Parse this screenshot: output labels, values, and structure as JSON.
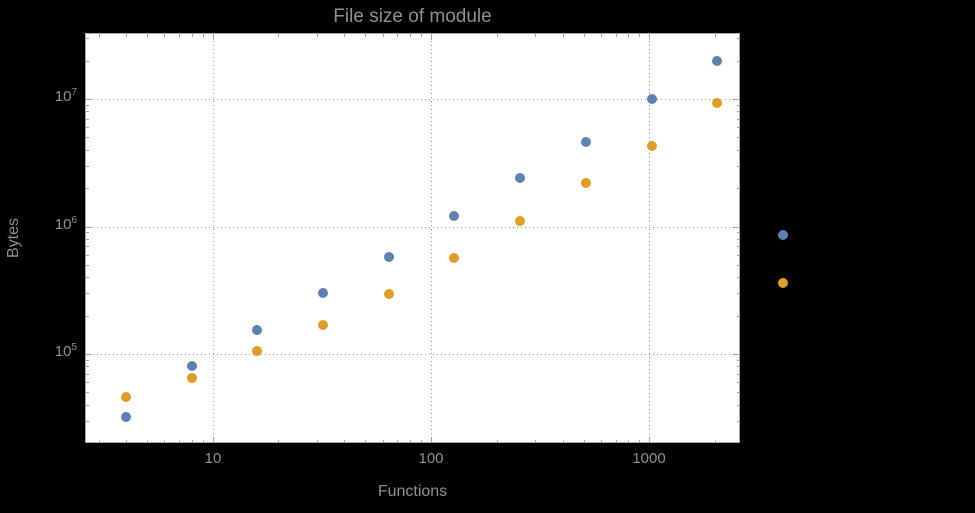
{
  "figure": {
    "title": "File size of module",
    "x_label": "Functions",
    "y_label": "Bytes",
    "colors": {
      "background": "#000000",
      "plot_background": "#ffffff",
      "frame": "#a6a6a6",
      "grid": "#999999",
      "text": "#8f8f8f",
      "series_blue": "#5e81b5",
      "series_orange": "#e19c24"
    }
  },
  "chart_data": {
    "type": "scatter",
    "title": "File size of module",
    "xlabel": "Functions",
    "ylabel": "Bytes",
    "x_scale": "log",
    "y_scale": "log",
    "xlim": [
      2.6,
      2600
    ],
    "ylim": [
      20000,
      33000000
    ],
    "grid": "dotted-at-major-ticks",
    "legend": false,
    "frame": true,
    "x": [
      4,
      8,
      16,
      32,
      64,
      128,
      256,
      512,
      1024,
      2048,
      4096
    ],
    "series": [
      {
        "name": "blue-series",
        "color": "#5e81b5",
        "values": [
          32000,
          80000,
          155000,
          300000,
          580000,
          1200000,
          2400000,
          4600000,
          10000000,
          20000000,
          850000
        ]
      },
      {
        "name": "orange-series",
        "color": "#e19c24",
        "values": [
          46000,
          65000,
          105000,
          170000,
          295000,
          570000,
          1100000,
          2200000,
          4300000,
          9300000,
          360000
        ]
      }
    ],
    "x_ticks": [
      {
        "value": 10,
        "label": "10"
      },
      {
        "value": 100,
        "label": "100"
      },
      {
        "value": 1000,
        "label": "1000"
      }
    ],
    "y_ticks": [
      {
        "value": 100000,
        "label": "10^5",
        "base": "10",
        "exp": "5"
      },
      {
        "value": 1000000,
        "label": "10^6",
        "base": "10",
        "exp": "6"
      },
      {
        "value": 10000000,
        "label": "10^7",
        "base": "10",
        "exp": "7"
      }
    ]
  }
}
